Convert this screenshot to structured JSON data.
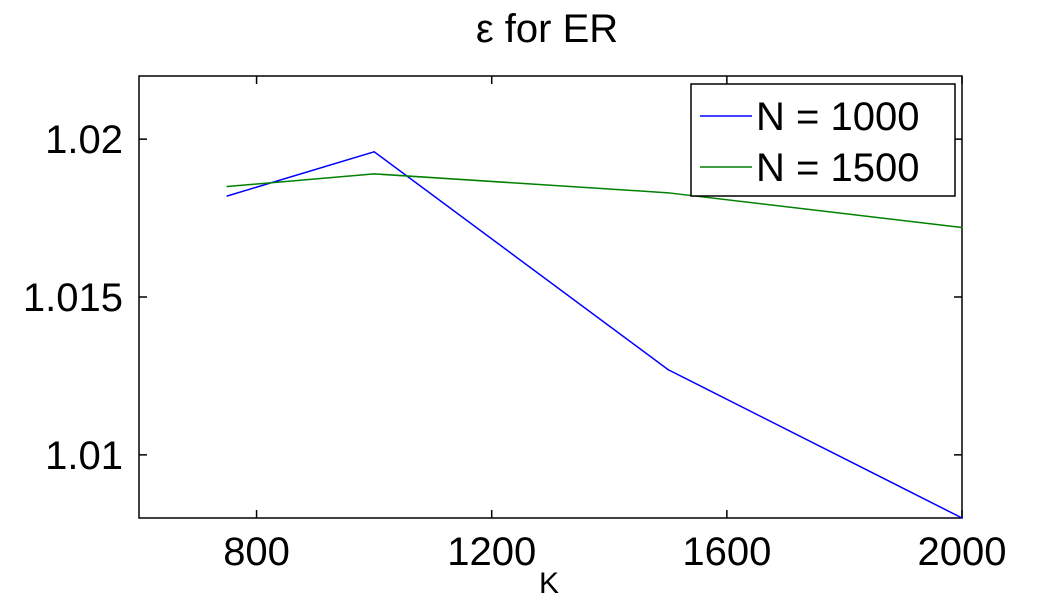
{
  "chart_data": {
    "type": "line",
    "title": "ε for ER",
    "xlabel": "K",
    "ylabel": "",
    "xlim": [
      600,
      2000
    ],
    "ylim": [
      1.008,
      1.022
    ],
    "xticks": [
      800,
      1200,
      1600,
      2000
    ],
    "xtick_labels": [
      "800",
      "1200",
      "1600",
      "2000"
    ],
    "yticks": [
      1.01,
      1.015,
      1.02
    ],
    "ytick_labels": [
      "1.01",
      "1.015",
      "1.02"
    ],
    "grid": false,
    "legend_position": "top-right",
    "series": [
      {
        "name": "N = 1000",
        "color": "#0000ff",
        "x": [
          750,
          1000,
          1500,
          2000
        ],
        "y": [
          1.0182,
          1.0196,
          1.0127,
          1.008
        ]
      },
      {
        "name": "N = 1500",
        "color": "#008000",
        "x": [
          750,
          1000,
          1500,
          2000
        ],
        "y": [
          1.0185,
          1.0189,
          1.0183,
          1.0172
        ]
      }
    ]
  }
}
